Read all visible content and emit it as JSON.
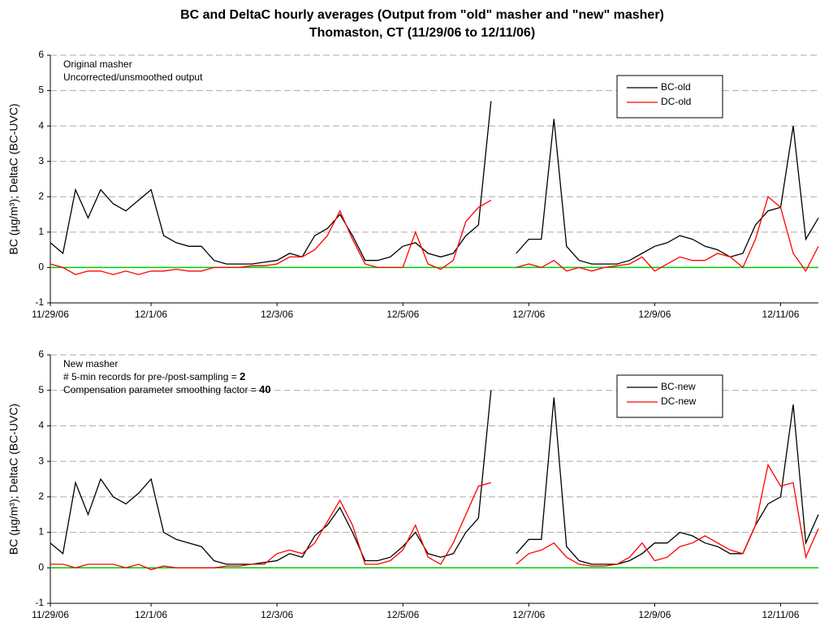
{
  "title": "BC and DeltaC hourly averages (Output from \"old\" masher and \"new\" masher)",
  "subtitle": "Thomaston, CT (11/29/06 to 12/11/06)",
  "chart_data": [
    {
      "type": "line",
      "ylabel": "BC (µg/m³); DeltaC (BC-UVC)",
      "annotations": [
        {
          "text": "Original masher"
        },
        {
          "text": "Uncorrected/unsmoothed output"
        }
      ],
      "x": [
        0.4,
        0.6,
        0.8,
        1.0,
        1.2,
        1.4,
        1.6,
        1.8,
        2.0,
        2.2,
        2.4,
        2.6,
        2.8,
        3.0,
        3.2,
        3.4,
        3.6,
        3.8,
        4.0,
        4.2,
        4.4,
        4.6,
        4.8,
        5.0,
        5.2,
        5.4,
        5.6,
        5.8,
        6.0,
        6.2,
        6.4,
        6.6,
        6.8,
        7.0,
        7.2,
        7.4,
        7.6,
        7.8,
        8.0,
        8.2,
        8.4,
        8.6,
        8.8,
        9.0,
        9.2,
        9.4,
        9.6,
        9.8,
        10.0,
        10.2,
        10.4,
        10.6,
        10.8,
        11.0,
        11.2,
        11.4,
        11.6,
        11.8,
        12.0,
        12.2,
        12.4,
        12.6
      ],
      "series": [
        {
          "name": "BC-old",
          "color": "#000000",
          "values": [
            0.7,
            0.4,
            2.2,
            1.4,
            2.2,
            1.8,
            1.6,
            1.9,
            2.2,
            0.9,
            0.7,
            0.6,
            0.6,
            0.2,
            0.1,
            0.1,
            0.1,
            0.15,
            0.2,
            0.4,
            0.3,
            0.9,
            1.1,
            1.5,
            0.9,
            0.2,
            0.2,
            0.3,
            0.6,
            0.7,
            0.4,
            0.3,
            0.4,
            0.9,
            1.2,
            4.7,
            null,
            0.4,
            0.8,
            0.8,
            4.2,
            0.6,
            0.2,
            0.1,
            0.1,
            0.1,
            0.2,
            0.4,
            0.6,
            0.7,
            0.9,
            0.8,
            0.6,
            0.5,
            0.3,
            0.4,
            1.2,
            1.6,
            1.7,
            4.0,
            0.8,
            1.4
          ]
        },
        {
          "name": "DC-old",
          "color": "#ff0000",
          "values": [
            0.1,
            0.0,
            -0.2,
            -0.1,
            -0.1,
            -0.2,
            -0.1,
            -0.2,
            -0.1,
            -0.1,
            -0.05,
            -0.1,
            -0.1,
            0,
            0,
            0,
            0.05,
            0.05,
            0.1,
            0.3,
            0.3,
            0.5,
            0.9,
            1.6,
            0.8,
            0.1,
            0,
            0,
            0,
            1.0,
            0.1,
            -0.05,
            0.2,
            1.3,
            1.7,
            1.9,
            null,
            0,
            0.1,
            0.0,
            0.2,
            -0.1,
            0,
            -0.1,
            0,
            0.05,
            0.1,
            0.3,
            -0.1,
            0.1,
            0.3,
            0.2,
            0.2,
            0.4,
            0.3,
            0,
            0.8,
            2.0,
            1.7,
            0.4,
            -0.1,
            0.6
          ]
        }
      ],
      "xlim": [
        0.4,
        12.6
      ],
      "ylim": [
        -1,
        6
      ],
      "xticks": [
        {
          "value": 0.4,
          "label": "11/29/06"
        },
        {
          "value": 2,
          "label": "12/1/06"
        },
        {
          "value": 4,
          "label": "12/3/06"
        },
        {
          "value": 6,
          "label": "12/5/06"
        },
        {
          "value": 8,
          "label": "12/7/06"
        },
        {
          "value": 10,
          "label": "12/9/06"
        },
        {
          "value": 12,
          "label": "12/11/06"
        }
      ],
      "yticks": [
        -1,
        0,
        1,
        2,
        3,
        4,
        5,
        6
      ],
      "grid": true,
      "legend": "upper right",
      "zero_line_color": "#00cc00"
    },
    {
      "type": "line",
      "ylabel": "BC (µg/m³); DeltaC (BC-UVC)",
      "annotations": [
        {
          "text": "New masher"
        },
        {
          "text": "# 5-min records for pre-/post-sampling = ",
          "emph": "2"
        },
        {
          "text": "Compensation parameter smoothing factor = ",
          "emph": "40"
        }
      ],
      "x": [
        0.4,
        0.6,
        0.8,
        1.0,
        1.2,
        1.4,
        1.6,
        1.8,
        2.0,
        2.2,
        2.4,
        2.6,
        2.8,
        3.0,
        3.2,
        3.4,
        3.6,
        3.8,
        4.0,
        4.2,
        4.4,
        4.6,
        4.8,
        5.0,
        5.2,
        5.4,
        5.6,
        5.8,
        6.0,
        6.2,
        6.4,
        6.6,
        6.8,
        7.0,
        7.2,
        7.4,
        7.6,
        7.8,
        8.0,
        8.2,
        8.4,
        8.6,
        8.8,
        9.0,
        9.2,
        9.4,
        9.6,
        9.8,
        10.0,
        10.2,
        10.4,
        10.6,
        10.8,
        11.0,
        11.2,
        11.4,
        11.6,
        11.8,
        12.0,
        12.2,
        12.4,
        12.6
      ],
      "series": [
        {
          "name": "BC-new",
          "color": "#000000",
          "values": [
            0.7,
            0.4,
            2.4,
            1.5,
            2.5,
            2.0,
            1.8,
            2.1,
            2.5,
            1.0,
            0.8,
            0.7,
            0.6,
            0.2,
            0.1,
            0.1,
            0.1,
            0.15,
            0.2,
            0.4,
            0.3,
            0.9,
            1.2,
            1.7,
            1.0,
            0.2,
            0.2,
            0.3,
            0.6,
            1.0,
            0.4,
            0.3,
            0.4,
            1.0,
            1.4,
            5.0,
            null,
            0.4,
            0.8,
            0.8,
            4.8,
            0.6,
            0.2,
            0.1,
            0.1,
            0.1,
            0.2,
            0.4,
            0.7,
            0.7,
            1.0,
            0.9,
            0.7,
            0.6,
            0.4,
            0.4,
            1.2,
            1.8,
            2.0,
            4.6,
            0.7,
            1.5
          ]
        },
        {
          "name": "DC-new",
          "color": "#ff0000",
          "values": [
            0.1,
            0.1,
            0.0,
            0.1,
            0.1,
            0.1,
            0.0,
            0.1,
            -0.05,
            0.05,
            0.0,
            0,
            0,
            0,
            0.05,
            0.05,
            0.1,
            0.1,
            0.4,
            0.5,
            0.4,
            0.7,
            1.3,
            1.9,
            1.2,
            0.1,
            0.1,
            0.2,
            0.5,
            1.2,
            0.3,
            0.1,
            0.7,
            1.5,
            2.3,
            2.4,
            null,
            0.1,
            0.4,
            0.5,
            0.7,
            0.3,
            0.1,
            0.05,
            0.05,
            0.1,
            0.3,
            0.7,
            0.2,
            0.3,
            0.6,
            0.7,
            0.9,
            0.7,
            0.5,
            0.4,
            1.2,
            2.9,
            2.3,
            2.4,
            0.3,
            1.1
          ]
        }
      ],
      "xlim": [
        0.4,
        12.6
      ],
      "ylim": [
        -1,
        6
      ],
      "xticks": [
        {
          "value": 0.4,
          "label": "11/29/06"
        },
        {
          "value": 2,
          "label": "12/1/06"
        },
        {
          "value": 4,
          "label": "12/3/06"
        },
        {
          "value": 6,
          "label": "12/5/06"
        },
        {
          "value": 8,
          "label": "12/7/06"
        },
        {
          "value": 10,
          "label": "12/9/06"
        },
        {
          "value": 12,
          "label": "12/11/06"
        }
      ],
      "yticks": [
        -1,
        0,
        1,
        2,
        3,
        4,
        5,
        6
      ],
      "grid": true,
      "legend": "upper right",
      "zero_line_color": "#00cc00"
    }
  ]
}
